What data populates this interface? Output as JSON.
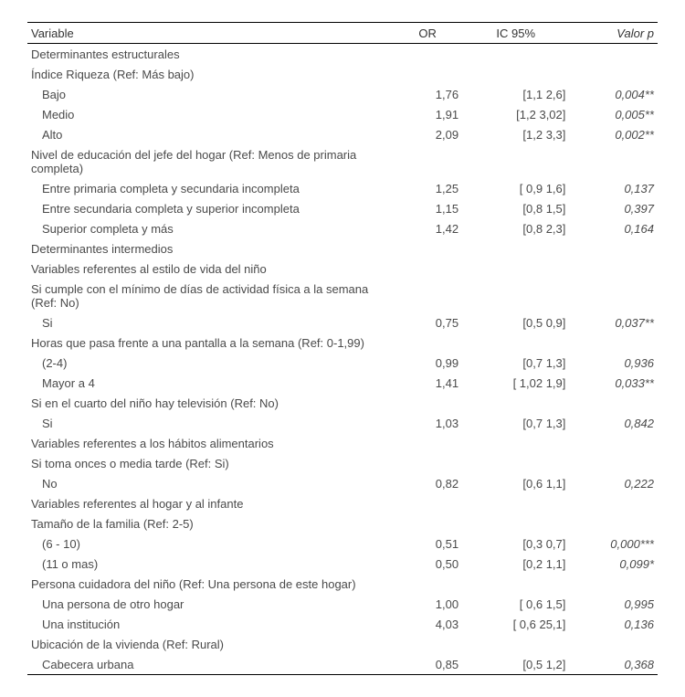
{
  "headers": {
    "variable": "Variable",
    "or": "OR",
    "ci": "IC 95%",
    "p": "Valor p"
  },
  "rows": [
    {
      "type": "section",
      "label": "Determinantes estructurales"
    },
    {
      "type": "section",
      "label": "Índice Riqueza (Ref: Más bajo)"
    },
    {
      "type": "data",
      "indent": 1,
      "label": "Bajo",
      "or": "1,76",
      "ci": "[1,1    2,6]",
      "p": "0,004**"
    },
    {
      "type": "data",
      "indent": 1,
      "label": "Medio",
      "or": "1,91",
      "ci": "[1,2  3,02]",
      "p": "0,005**"
    },
    {
      "type": "data",
      "indent": 1,
      "label": "Alto",
      "or": "2,09",
      "ci": "[1,2    3,3]",
      "p": "0,002**"
    },
    {
      "type": "section",
      "label": "Nivel de educación del jefe del hogar (Ref: Menos de primaria completa)"
    },
    {
      "type": "data",
      "indent": 1,
      "label": "Entre primaria completa y secundaria incompleta",
      "or": "1,25",
      "ci": "[ 0,9   1,6]",
      "p": "0,137"
    },
    {
      "type": "data",
      "indent": 1,
      "label": "Entre secundaria completa y superior incompleta",
      "or": "1,15",
      "ci": "[0,8   1,5]",
      "p": "0,397"
    },
    {
      "type": "data",
      "indent": 1,
      "label": "Superior completa y más",
      "or": "1,42",
      "ci": "[0,8   2,3]",
      "p": "0,164"
    },
    {
      "type": "section",
      "label": "Determinantes intermedios"
    },
    {
      "type": "section",
      "label": "Variables referentes al estilo de vida del niño"
    },
    {
      "type": "section",
      "label": "Si cumple con el mínimo de días de actividad física a la semana (Ref: No)"
    },
    {
      "type": "data",
      "indent": 1,
      "label": "Si",
      "or": "0,75",
      "ci": "[0,5   0,9]",
      "p": "0,037**"
    },
    {
      "type": "section",
      "label": "Horas que pasa frente a una pantalla a la semana (Ref: 0-1,99)"
    },
    {
      "type": "data",
      "indent": 1,
      "label": "(2-4)",
      "or": "0,99",
      "ci": "[0,7    1,3]",
      "p": "0,936"
    },
    {
      "type": "data",
      "indent": 1,
      "label": "Mayor a 4",
      "or": "1,41",
      "ci": "[ 1,02   1,9]",
      "p": "0,033**"
    },
    {
      "type": "section",
      "label": "Si en el cuarto del niño hay televisión (Ref: No)"
    },
    {
      "type": "data",
      "indent": 1,
      "label": "Si",
      "or": "1,03",
      "ci": "[0,7    1,3]",
      "p": "0,842"
    },
    {
      "type": "section",
      "label": "Variables referentes a los hábitos alimentarios"
    },
    {
      "type": "section",
      "label": "Si toma onces o media tarde (Ref: Si)"
    },
    {
      "type": "data",
      "indent": 1,
      "label": "No",
      "or": "0,82",
      "ci": "[0,6    1,1]",
      "p": "0,222"
    },
    {
      "type": "section",
      "label": "Variables referentes al hogar y al infante"
    },
    {
      "type": "section",
      "label": "Tamaño de la familia (Ref: 2-5)"
    },
    {
      "type": "data",
      "indent": 1,
      "label": "(6 - 10)",
      "or": "0,51",
      "ci": "[0,3   0,7]",
      "p": "0,000***"
    },
    {
      "type": "data",
      "indent": 1,
      "label": "(11  o mas)",
      "or": "0,50",
      "ci": "[0,2    1,1]",
      "p": "0,099*"
    },
    {
      "type": "section",
      "label": "Persona cuidadora del niño (Ref: Una persona de este hogar)"
    },
    {
      "type": "data",
      "indent": 1,
      "label": "Una persona de otro hogar",
      "or": "1,00",
      "ci": "[ 0,6   1,5]",
      "p": "0,995"
    },
    {
      "type": "data",
      "indent": 1,
      "label": "Una institución",
      "or": "4,03",
      "ci": "[ 0,6  25,1]",
      "p": "0,136"
    },
    {
      "type": "section",
      "label": "Ubicación de la vivienda (Ref: Rural)"
    },
    {
      "type": "data",
      "indent": 1,
      "label": "Cabecera urbana",
      "or": "0,85",
      "ci": "[0,5    1,2]",
      "p": "0,368"
    }
  ]
}
